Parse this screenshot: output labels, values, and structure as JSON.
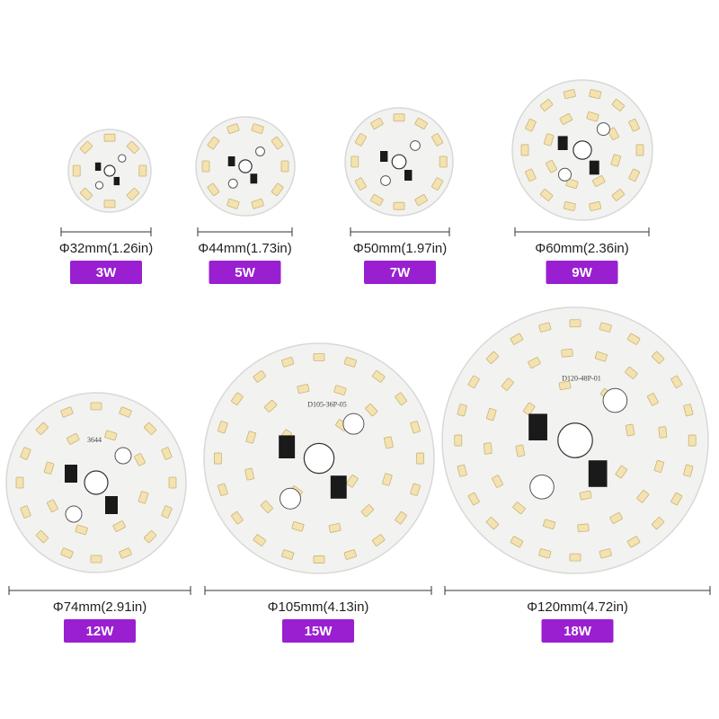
{
  "products": [
    {
      "diameter": "Φ32mm(1.26in)",
      "power": "3W"
    },
    {
      "diameter": "Φ44mm(1.73in)",
      "power": "5W"
    },
    {
      "diameter": "Φ50mm(1.97in)",
      "power": "7W"
    },
    {
      "diameter": "Φ60mm(2.36in)",
      "power": "9W"
    },
    {
      "diameter": "Φ74mm(2.91in)",
      "power": "12W",
      "board_label": "3644"
    },
    {
      "diameter": "Φ105mm(4.13in)",
      "power": "15W",
      "board_label": "D105-36P-05"
    },
    {
      "diameter": "Φ120mm(4.72in)",
      "power": "18W",
      "board_label": "D120-48P-01"
    }
  ]
}
